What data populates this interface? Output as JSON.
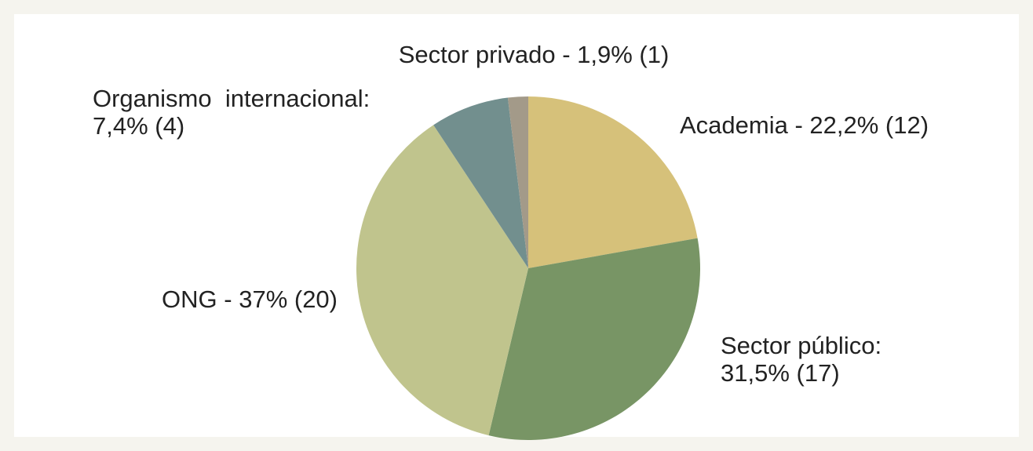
{
  "chart_data": {
    "type": "pie",
    "categories": [
      [
        "Academia - 22,2% (12)"
      ],
      [
        "Sector público:",
        "31,5% (17)"
      ],
      [
        "ONG - 37% (20)"
      ],
      [
        "Organismo  internacional:",
        "7,4% (4)"
      ],
      [
        "Sector privado - 1,9% (1)"
      ]
    ],
    "values": [
      22.2,
      31.5,
      37,
      7.4,
      1.9
    ],
    "counts": [
      12,
      17,
      20,
      4,
      1
    ],
    "colors": [
      "#d6c17a",
      "#789565",
      "#c0c48d",
      "#728f8e",
      "#a39a89"
    ]
  }
}
